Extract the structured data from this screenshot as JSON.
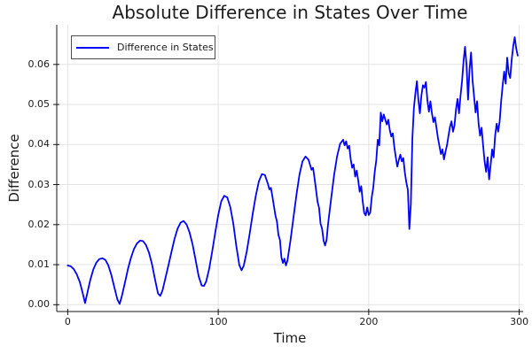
{
  "chart_data": {
    "type": "line",
    "title": "Absolute Difference in States Over Time",
    "xlabel": "Time",
    "ylabel": "Difference",
    "xlim": [
      -7.3,
      302.6
    ],
    "ylim": [
      -0.0017,
      0.0699
    ],
    "xticks": {
      "values": [
        0,
        100,
        200,
        300
      ],
      "labels": [
        "0",
        "100",
        "200",
        "300"
      ]
    },
    "yticks": {
      "values": [
        0.0,
        0.01,
        0.02,
        0.03,
        0.04,
        0.05,
        0.06
      ],
      "labels": [
        "0.00",
        "0.01",
        "0.02",
        "0.03",
        "0.04",
        "0.05",
        "0.06"
      ]
    },
    "grid": true,
    "legend": {
      "position": "top-left",
      "entries": [
        {
          "label": "Difference in States",
          "color": "#0000ff"
        }
      ]
    },
    "colors": {
      "line": "#0000ff",
      "grid": "#e3e3e3",
      "axis": "#141414",
      "text": "#1a1a1a",
      "background": "#ffffff"
    },
    "series": [
      {
        "name": "Difference in States",
        "color": "#0000ff",
        "points": [
          [
            0,
            0.0098
          ],
          [
            2,
            0.0096
          ],
          [
            4,
            0.0089
          ],
          [
            6,
            0.0076
          ],
          [
            8,
            0.0057
          ],
          [
            10,
            0.0028
          ],
          [
            11.5,
            0.0004
          ],
          [
            13,
            0.0029
          ],
          [
            15,
            0.0062
          ],
          [
            17,
            0.0088
          ],
          [
            19,
            0.0105
          ],
          [
            21,
            0.0114
          ],
          [
            23,
            0.0116
          ],
          [
            25,
            0.0112
          ],
          [
            27,
            0.0098
          ],
          [
            29,
            0.0074
          ],
          [
            31,
            0.0043
          ],
          [
            33,
            0.0013
          ],
          [
            34.5,
            0.0002
          ],
          [
            36,
            0.0022
          ],
          [
            38,
            0.0055
          ],
          [
            40,
            0.0089
          ],
          [
            42,
            0.0117
          ],
          [
            44,
            0.0139
          ],
          [
            46,
            0.0153
          ],
          [
            48,
            0.016
          ],
          [
            50,
            0.0159
          ],
          [
            52,
            0.0149
          ],
          [
            54,
            0.013
          ],
          [
            56,
            0.0101
          ],
          [
            58,
            0.0063
          ],
          [
            60,
            0.0028
          ],
          [
            61.5,
            0.0022
          ],
          [
            63,
            0.0036
          ],
          [
            65,
            0.0068
          ],
          [
            67,
            0.01
          ],
          [
            69,
            0.0133
          ],
          [
            71,
            0.0165
          ],
          [
            73,
            0.019
          ],
          [
            75,
            0.0205
          ],
          [
            77,
            0.0209
          ],
          [
            79,
            0.02
          ],
          [
            81,
            0.018
          ],
          [
            83,
            0.015
          ],
          [
            85,
            0.0111
          ],
          [
            87,
            0.0071
          ],
          [
            89,
            0.0048
          ],
          [
            90.5,
            0.0047
          ],
          [
            92,
            0.0058
          ],
          [
            94,
            0.009
          ],
          [
            96,
            0.0133
          ],
          [
            98,
            0.018
          ],
          [
            100,
            0.0224
          ],
          [
            102,
            0.0258
          ],
          [
            104,
            0.0272
          ],
          [
            106,
            0.0268
          ],
          [
            108,
            0.0244
          ],
          [
            110,
            0.0203
          ],
          [
            112,
            0.0147
          ],
          [
            114,
            0.0099
          ],
          [
            115.5,
            0.0086
          ],
          [
            117,
            0.0098
          ],
          [
            119,
            0.0134
          ],
          [
            121,
            0.018
          ],
          [
            123,
            0.0229
          ],
          [
            125,
            0.0273
          ],
          [
            127,
            0.0308
          ],
          [
            129,
            0.0326
          ],
          [
            131,
            0.0324
          ],
          [
            133,
            0.0302
          ],
          [
            134,
            0.0288
          ],
          [
            135,
            0.0292
          ],
          [
            136,
            0.027
          ],
          [
            138,
            0.0223
          ],
          [
            139,
            0.0208
          ],
          [
            140,
            0.0174
          ],
          [
            141,
            0.0162
          ],
          [
            142,
            0.0118
          ],
          [
            143,
            0.0104
          ],
          [
            144,
            0.0115
          ],
          [
            145,
            0.0098
          ],
          [
            146,
            0.011
          ],
          [
            148,
            0.016
          ],
          [
            150,
            0.0218
          ],
          [
            152,
            0.0275
          ],
          [
            154,
            0.0325
          ],
          [
            156,
            0.0358
          ],
          [
            158,
            0.037
          ],
          [
            160,
            0.0362
          ],
          [
            162,
            0.0337
          ],
          [
            163,
            0.0342
          ],
          [
            164,
            0.0316
          ],
          [
            166,
            0.0257
          ],
          [
            167,
            0.0242
          ],
          [
            168,
            0.0202
          ],
          [
            169,
            0.019
          ],
          [
            170,
            0.016
          ],
          [
            171,
            0.0148
          ],
          [
            172,
            0.0162
          ],
          [
            173,
            0.0202
          ],
          [
            175,
            0.0264
          ],
          [
            177,
            0.0324
          ],
          [
            179,
            0.0371
          ],
          [
            181,
            0.0402
          ],
          [
            183,
            0.0412
          ],
          [
            184,
            0.0398
          ],
          [
            185,
            0.0408
          ],
          [
            186,
            0.039
          ],
          [
            187,
            0.0397
          ],
          [
            188,
            0.0364
          ],
          [
            189,
            0.0342
          ],
          [
            190,
            0.035
          ],
          [
            191,
            0.032
          ],
          [
            192,
            0.0335
          ],
          [
            193,
            0.0311
          ],
          [
            194,
            0.0282
          ],
          [
            195,
            0.0296
          ],
          [
            196,
            0.0258
          ],
          [
            197,
            0.0229
          ],
          [
            198,
            0.0223
          ],
          [
            199,
            0.0243
          ],
          [
            200,
            0.0224
          ],
          [
            201,
            0.023
          ],
          [
            202,
            0.0268
          ],
          [
            203,
            0.0292
          ],
          [
            204,
            0.0332
          ],
          [
            205,
            0.036
          ],
          [
            206,
            0.0412
          ],
          [
            207,
            0.0398
          ],
          [
            208,
            0.048
          ],
          [
            209,
            0.0458
          ],
          [
            210,
            0.0475
          ],
          [
            211,
            0.0462
          ],
          [
            212,
            0.045
          ],
          [
            213,
            0.0462
          ],
          [
            214,
            0.0436
          ],
          [
            215,
            0.042
          ],
          [
            216,
            0.0428
          ],
          [
            217,
            0.0394
          ],
          [
            218,
            0.0368
          ],
          [
            219,
            0.0345
          ],
          [
            220,
            0.0361
          ],
          [
            221,
            0.0375
          ],
          [
            222,
            0.0358
          ],
          [
            223,
            0.0366
          ],
          [
            224,
            0.033
          ],
          [
            225,
            0.0305
          ],
          [
            226,
            0.0287
          ],
          [
            227,
            0.0189
          ],
          [
            228,
            0.0252
          ],
          [
            229,
            0.0415
          ],
          [
            230,
            0.049
          ],
          [
            231,
            0.0528
          ],
          [
            232,
            0.0558
          ],
          [
            233,
            0.0512
          ],
          [
            234,
            0.0478
          ],
          [
            235,
            0.0522
          ],
          [
            236,
            0.0548
          ],
          [
            237,
            0.0542
          ],
          [
            238,
            0.0556
          ],
          [
            239,
            0.051
          ],
          [
            240,
            0.0482
          ],
          [
            241,
            0.0508
          ],
          [
            242,
            0.0478
          ],
          [
            243,
            0.0456
          ],
          [
            244,
            0.0468
          ],
          [
            245,
            0.0442
          ],
          [
            246,
            0.0416
          ],
          [
            247,
            0.0396
          ],
          [
            248,
            0.0376
          ],
          [
            249,
            0.0388
          ],
          [
            250,
            0.0363
          ],
          [
            251,
            0.0382
          ],
          [
            252,
            0.0398
          ],
          [
            253,
            0.0422
          ],
          [
            254,
            0.0444
          ],
          [
            255,
            0.0458
          ],
          [
            256,
            0.0432
          ],
          [
            257,
            0.0448
          ],
          [
            258,
            0.0488
          ],
          [
            259,
            0.0514
          ],
          [
            260,
            0.0478
          ],
          [
            261,
            0.0522
          ],
          [
            262,
            0.0558
          ],
          [
            263,
            0.0608
          ],
          [
            264,
            0.0644
          ],
          [
            265,
            0.0598
          ],
          [
            266,
            0.0512
          ],
          [
            267,
            0.0588
          ],
          [
            268,
            0.063
          ],
          [
            269,
            0.056
          ],
          [
            270,
            0.052
          ],
          [
            271,
            0.048
          ],
          [
            272,
            0.0508
          ],
          [
            273,
            0.0452
          ],
          [
            274,
            0.0422
          ],
          [
            275,
            0.0442
          ],
          [
            276,
            0.0398
          ],
          [
            277,
            0.0358
          ],
          [
            278,
            0.0332
          ],
          [
            279,
            0.0368
          ],
          [
            280,
            0.0313
          ],
          [
            281,
            0.0348
          ],
          [
            282,
            0.0388
          ],
          [
            283,
            0.0368
          ],
          [
            284,
            0.0422
          ],
          [
            285,
            0.0452
          ],
          [
            286,
            0.0432
          ],
          [
            287,
            0.0458
          ],
          [
            288,
            0.0508
          ],
          [
            289,
            0.0548
          ],
          [
            290,
            0.0582
          ],
          [
            291,
            0.0552
          ],
          [
            292,
            0.0617
          ],
          [
            293,
            0.0578
          ],
          [
            294,
            0.0566
          ],
          [
            295,
            0.0612
          ],
          [
            296,
            0.0645
          ],
          [
            297,
            0.0668
          ],
          [
            298,
            0.064
          ],
          [
            299,
            0.0622
          ]
        ]
      }
    ]
  }
}
